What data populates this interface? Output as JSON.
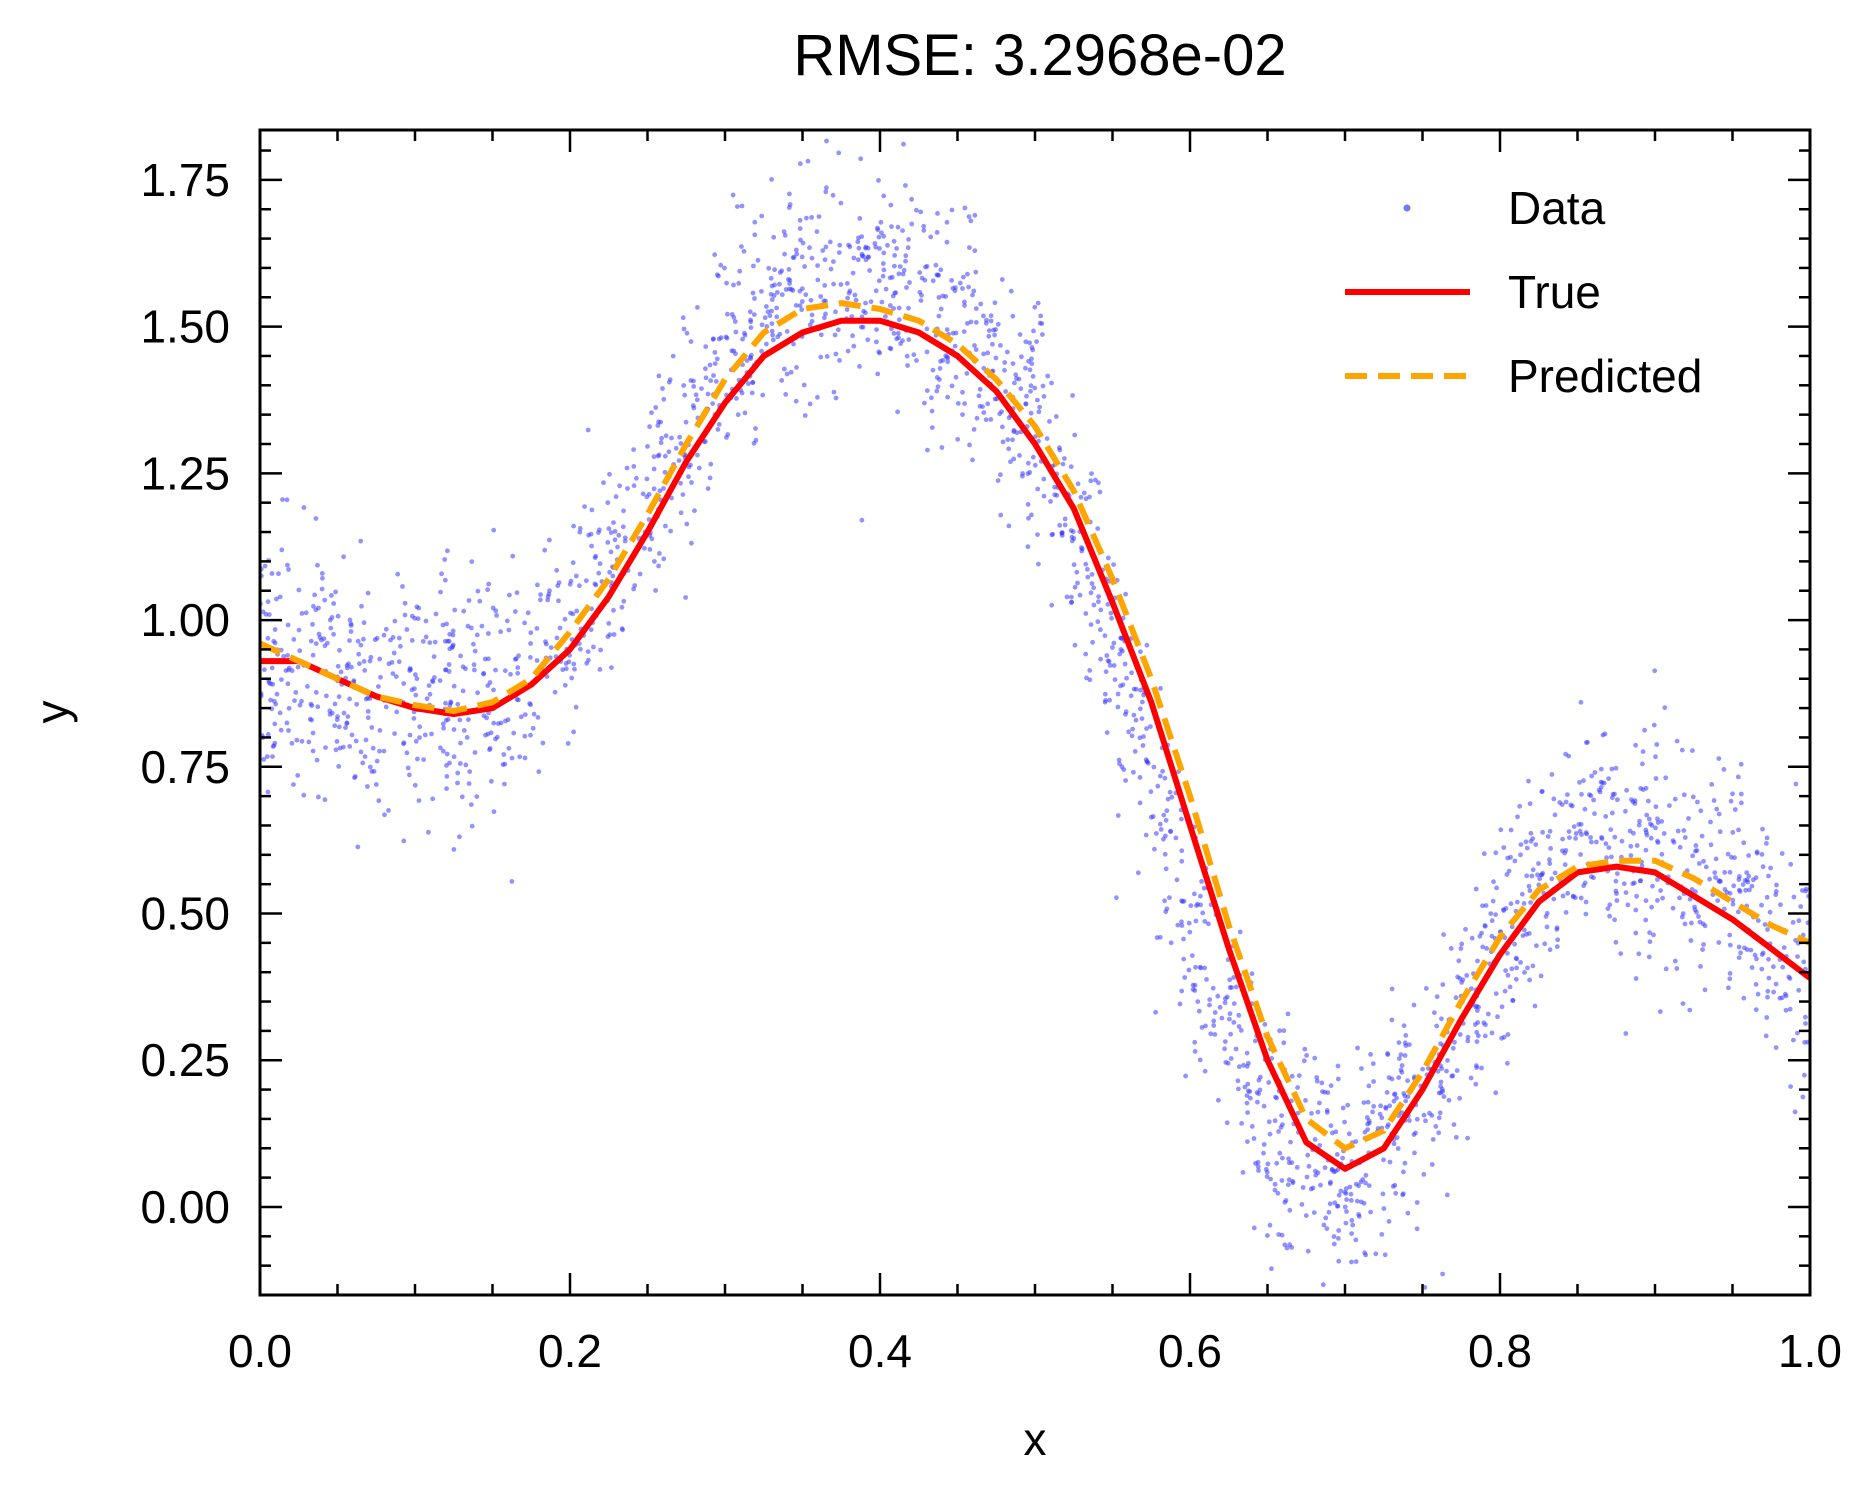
{
  "chart_data": {
    "type": "line",
    "title": "RMSE: 3.2968e-02",
    "xlabel": "x",
    "ylabel": "y",
    "xlim": [
      0.0,
      1.0
    ],
    "ylim": [
      -0.15,
      1.835
    ],
    "x_ticks": [
      0.0,
      0.2,
      0.4,
      0.6,
      0.8,
      1.0
    ],
    "x_tick_labels": [
      "0.0",
      "0.2",
      "0.4",
      "0.6",
      "0.8",
      "1.0"
    ],
    "y_ticks": [
      0.0,
      0.25,
      0.5,
      0.75,
      1.0,
      1.25,
      1.5,
      1.75
    ],
    "y_tick_labels": [
      "0.00",
      "0.25",
      "0.50",
      "0.75",
      "1.00",
      "1.25",
      "1.50",
      "1.75"
    ],
    "grid": false,
    "legend_position": "top-right",
    "series": [
      {
        "name": "Data",
        "kind": "scatter",
        "color": "#3a3aff",
        "noise_sd": 0.1,
        "x": [
          0.0,
          0.05,
          0.1,
          0.15,
          0.2,
          0.25,
          0.3,
          0.35,
          0.4,
          0.45,
          0.5,
          0.55,
          0.6,
          0.65,
          0.7,
          0.75,
          0.8,
          0.85,
          0.9,
          0.95,
          1.0
        ],
        "y": [
          0.93,
          0.9,
          0.85,
          0.86,
          0.98,
          1.2,
          1.45,
          1.58,
          1.58,
          1.5,
          1.33,
          0.95,
          0.48,
          0.15,
          0.05,
          0.18,
          0.45,
          0.62,
          0.62,
          0.55,
          0.4
        ]
      },
      {
        "name": "True",
        "kind": "line",
        "color": "#ff0000",
        "dash": "solid",
        "x": [
          0.0,
          0.025,
          0.05,
          0.075,
          0.1,
          0.125,
          0.15,
          0.175,
          0.2,
          0.225,
          0.25,
          0.275,
          0.3,
          0.325,
          0.35,
          0.375,
          0.4,
          0.425,
          0.45,
          0.475,
          0.5,
          0.525,
          0.55,
          0.575,
          0.6,
          0.625,
          0.65,
          0.675,
          0.7,
          0.725,
          0.75,
          0.775,
          0.8,
          0.825,
          0.85,
          0.875,
          0.9,
          0.925,
          0.95,
          0.975,
          1.0
        ],
        "y": [
          0.93,
          0.93,
          0.9,
          0.87,
          0.85,
          0.84,
          0.85,
          0.89,
          0.95,
          1.04,
          1.15,
          1.27,
          1.37,
          1.45,
          1.49,
          1.51,
          1.51,
          1.49,
          1.45,
          1.39,
          1.3,
          1.19,
          1.03,
          0.86,
          0.65,
          0.44,
          0.25,
          0.11,
          0.065,
          0.1,
          0.2,
          0.32,
          0.43,
          0.52,
          0.57,
          0.58,
          0.57,
          0.53,
          0.49,
          0.44,
          0.39
        ]
      },
      {
        "name": "Predicted",
        "kind": "line",
        "color": "#ffa500",
        "dash": "dashed",
        "x": [
          0.0,
          0.025,
          0.05,
          0.075,
          0.1,
          0.125,
          0.15,
          0.175,
          0.2,
          0.225,
          0.25,
          0.275,
          0.3,
          0.325,
          0.35,
          0.375,
          0.4,
          0.425,
          0.45,
          0.475,
          0.5,
          0.525,
          0.55,
          0.575,
          0.6,
          0.625,
          0.65,
          0.675,
          0.7,
          0.725,
          0.75,
          0.775,
          0.8,
          0.825,
          0.85,
          0.875,
          0.9,
          0.925,
          0.95,
          0.975,
          1.0
        ],
        "y": [
          0.96,
          0.93,
          0.9,
          0.87,
          0.855,
          0.845,
          0.86,
          0.9,
          0.98,
          1.07,
          1.18,
          1.3,
          1.41,
          1.49,
          1.53,
          1.54,
          1.53,
          1.51,
          1.47,
          1.41,
          1.33,
          1.22,
          1.07,
          0.9,
          0.7,
          0.48,
          0.29,
          0.15,
          0.1,
          0.13,
          0.23,
          0.35,
          0.46,
          0.54,
          0.58,
          0.59,
          0.59,
          0.56,
          0.52,
          0.48,
          0.45
        ]
      }
    ]
  }
}
